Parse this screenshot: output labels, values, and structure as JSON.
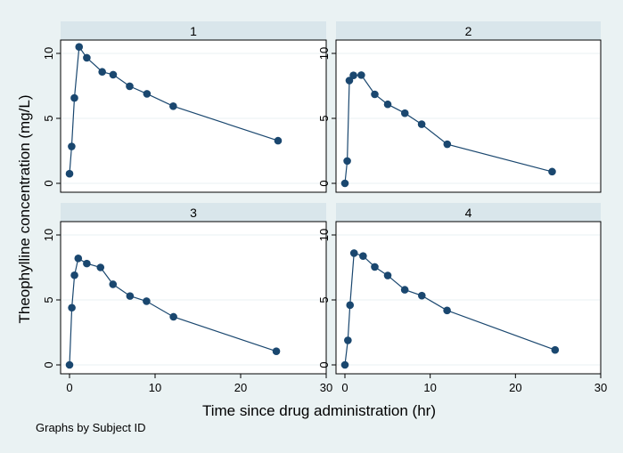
{
  "chart_data": {
    "type": "line",
    "layout": "2x2 small multiples",
    "xlabel": "Time since drug administration (hr)",
    "ylabel": "Theophylline concentration (mg/L)",
    "note": "Graphs by Subject ID",
    "xlim": [
      0,
      30
    ],
    "ylim": [
      0,
      10
    ],
    "xticks": [
      0,
      10,
      20,
      30
    ],
    "yticks": [
      0,
      5,
      10
    ],
    "grid": true,
    "colors": {
      "background": "#eaf2f3",
      "plot_area": "#ffffff",
      "strip": "#d9e6eb",
      "series": "#1a476f",
      "grid": "#eaf2f3"
    },
    "panels": [
      {
        "label": "1",
        "x": [
          0,
          0.25,
          0.57,
          1.12,
          2.02,
          3.82,
          5.1,
          7.03,
          9.05,
          12.12,
          24.37
        ],
        "y": [
          0.74,
          2.84,
          6.57,
          10.5,
          9.66,
          8.58,
          8.36,
          7.47,
          6.89,
          5.94,
          3.28
        ]
      },
      {
        "label": "2",
        "x": [
          0,
          0.27,
          0.52,
          1.0,
          1.92,
          3.5,
          5.02,
          7.03,
          9.0,
          12.0,
          24.3
        ],
        "y": [
          0,
          1.72,
          7.91,
          8.31,
          8.33,
          6.85,
          6.08,
          5.4,
          4.55,
          3.01,
          0.9
        ]
      },
      {
        "label": "3",
        "x": [
          0,
          0.27,
          0.58,
          1.02,
          2.02,
          3.62,
          5.08,
          7.07,
          9.0,
          12.15,
          24.17
        ],
        "y": [
          0,
          4.4,
          6.9,
          8.2,
          7.8,
          7.5,
          6.2,
          5.3,
          4.9,
          3.7,
          1.05
        ]
      },
      {
        "label": "4",
        "x": [
          0,
          0.35,
          0.6,
          1.07,
          2.13,
          3.5,
          5.02,
          7.02,
          9.02,
          11.98,
          24.65
        ],
        "y": [
          0,
          1.89,
          4.6,
          8.6,
          8.38,
          7.54,
          6.88,
          5.78,
          5.33,
          4.19,
          1.15
        ]
      }
    ]
  }
}
